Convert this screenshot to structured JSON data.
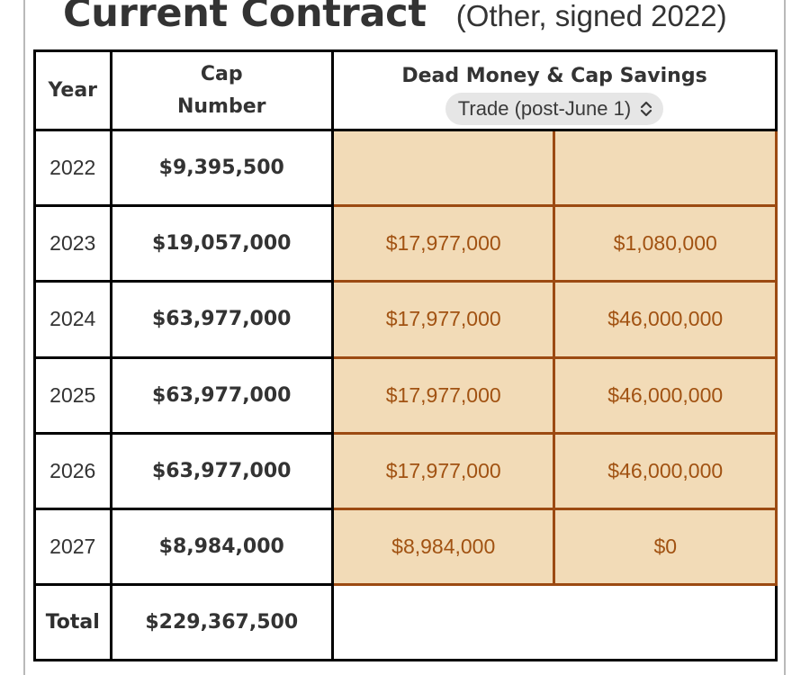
{
  "header": {
    "title": "Current Contract",
    "subtitle": "(Other, signed 2022)"
  },
  "table": {
    "col_year": "Year",
    "col_cap": "Cap Number",
    "col_dead_savings": "Dead Money & Cap Savings",
    "scenario_select": "Trade (post-June 1)",
    "rows": [
      {
        "year": "2022",
        "cap": "$9,395,500",
        "dead": "",
        "savings": ""
      },
      {
        "year": "2023",
        "cap": "$19,057,000",
        "dead": "$17,977,000",
        "savings": "$1,080,000"
      },
      {
        "year": "2024",
        "cap": "$63,977,000",
        "dead": "$17,977,000",
        "savings": "$46,000,000"
      },
      {
        "year": "2025",
        "cap": "$63,977,000",
        "dead": "$17,977,000",
        "savings": "$46,000,000"
      },
      {
        "year": "2026",
        "cap": "$63,977,000",
        "dead": "$17,977,000",
        "savings": "$46,000,000"
      },
      {
        "year": "2027",
        "cap": "$8,984,000",
        "dead": "$8,984,000",
        "savings": "$0"
      }
    ],
    "total_label": "Total",
    "total_cap": "$229,367,500"
  },
  "colors": {
    "highlight_fill": "#f2dbb7",
    "highlight_border": "#9c4a12",
    "highlight_text": "#a15212",
    "select_bg": "#e6e6e6"
  }
}
